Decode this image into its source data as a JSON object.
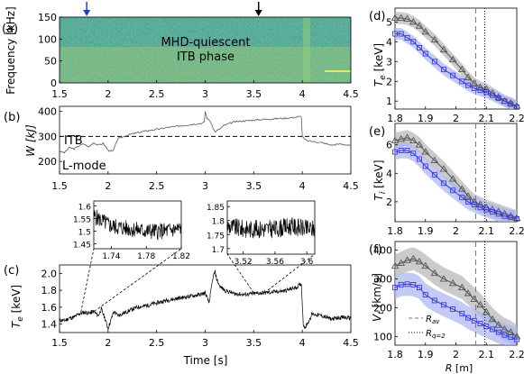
{
  "chart_data": [
    {
      "panel": "(a)",
      "type": "heatmap",
      "ylabel": "Frequency [kHz]",
      "xlim": [
        1.5,
        4.5
      ],
      "ylim": [
        0,
        150
      ],
      "xticks": [
        "1.5",
        "2",
        "2.5",
        "3",
        "3.5",
        "4",
        "4.5"
      ],
      "yticks": [
        "0",
        "50",
        "100",
        "150"
      ],
      "annotation": "MHD-quiescent\nITB phase",
      "arrows": [
        {
          "x": 1.78,
          "color": "#1f3fd6"
        },
        {
          "x": 3.55,
          "color": "#000000"
        }
      ],
      "colors": {
        "base": "#3fa58c",
        "low": "#2f6f8f",
        "high": "#d8e45a"
      }
    },
    {
      "panel": "(b)",
      "type": "line",
      "ylabel": "W [kJ]",
      "xlim": [
        1.5,
        4.5
      ],
      "ylim": [
        150,
        420
      ],
      "xticks": [
        "1.5",
        "2",
        "2.5",
        "3",
        "3.5",
        "4",
        "4.5"
      ],
      "yticks": [
        "200",
        "300",
        "400"
      ],
      "threshold": 300,
      "labels": [
        "ITB",
        "L-mode"
      ],
      "series": [
        {
          "x": [
            1.5,
            1.55,
            1.6,
            1.65,
            1.7,
            1.75,
            1.8,
            1.85,
            1.9,
            1.95,
            2.0,
            2.05,
            2.1,
            2.2,
            2.3,
            2.4,
            2.5,
            2.6,
            2.7,
            2.8,
            2.9,
            2.95,
            2.99,
            3.0,
            3.02,
            3.05,
            3.1,
            3.15,
            3.2,
            3.3,
            3.4,
            3.5,
            3.6,
            3.7,
            3.8,
            3.9,
            3.95,
            3.99,
            4.0,
            4.02,
            4.05,
            4.1,
            4.2,
            4.3,
            4.4,
            4.5
          ],
          "y": [
            240,
            235,
            255,
            250,
            262,
            270,
            258,
            275,
            265,
            272,
            245,
            240,
            290,
            305,
            315,
            322,
            328,
            335,
            340,
            345,
            350,
            352,
            355,
            400,
            372,
            362,
            318,
            330,
            345,
            358,
            362,
            365,
            368,
            370,
            372,
            375,
            378,
            380,
            300,
            290,
            282,
            280,
            275,
            265,
            270,
            262
          ]
        }
      ]
    },
    {
      "panel": "(c)",
      "type": "line",
      "ylabel": "Te [keV]",
      "xlabel": "Time [s]",
      "xlim": [
        1.5,
        4.5
      ],
      "ylim": [
        1.3,
        2.1
      ],
      "xticks": [
        "1.5",
        "2",
        "2.5",
        "3",
        "3.5",
        "4",
        "4.5"
      ],
      "yticks": [
        "1.4",
        "1.6",
        "1.8",
        "2.0"
      ],
      "series": [
        {
          "x": [
            1.5,
            1.55,
            1.6,
            1.65,
            1.7,
            1.75,
            1.8,
            1.85,
            1.9,
            1.93,
            1.96,
            2.0,
            2.03,
            2.06,
            2.1,
            2.2,
            2.3,
            2.4,
            2.5,
            2.6,
            2.7,
            2.8,
            2.9,
            2.95,
            3.0,
            3.04,
            3.08,
            3.1,
            3.12,
            3.15,
            3.2,
            3.25,
            3.3,
            3.4,
            3.5,
            3.6,
            3.7,
            3.8,
            3.9,
            3.95,
            3.99,
            4.01,
            4.03,
            4.06,
            4.1,
            4.2,
            4.3,
            4.4,
            4.5
          ],
          "y": [
            1.45,
            1.44,
            1.47,
            1.48,
            1.52,
            1.54,
            1.53,
            1.55,
            1.5,
            1.58,
            1.49,
            1.35,
            1.45,
            1.55,
            1.5,
            1.55,
            1.6,
            1.62,
            1.65,
            1.68,
            1.7,
            1.72,
            1.74,
            1.75,
            1.77,
            1.65,
            1.95,
            2.02,
            1.93,
            1.85,
            1.8,
            1.78,
            1.76,
            1.75,
            1.76,
            1.77,
            1.78,
            1.79,
            1.82,
            1.84,
            1.88,
            1.4,
            1.36,
            1.42,
            1.52,
            1.5,
            1.46,
            1.48,
            1.47
          ]
        }
      ]
    },
    {
      "panel": "inset-1",
      "type": "line",
      "xlim": [
        1.72,
        1.82
      ],
      "ylim": [
        1.43,
        1.62
      ],
      "xticks": [
        "1.74",
        "1.78",
        "1.82"
      ],
      "yticks": [
        "1.45",
        "1.5",
        "1.55",
        "1.6"
      ],
      "series": [
        {
          "x": [
            1.72,
            1.73,
            1.74,
            1.76,
            1.78,
            1.8,
            1.82
          ],
          "y": [
            1.56,
            1.54,
            1.52,
            1.51,
            1.5,
            1.5,
            1.51
          ]
        }
      ]
    },
    {
      "panel": "inset-2",
      "type": "line",
      "xlim": [
        3.5,
        3.61
      ],
      "ylim": [
        1.68,
        1.87
      ],
      "xticks": [
        "3.52",
        "3.56",
        "3.6"
      ],
      "yticks": [
        "1.7",
        "1.75",
        "1.8",
        "1.85"
      ],
      "series": [
        {
          "x": [
            3.5,
            3.52,
            3.54,
            3.56,
            3.58,
            3.6,
            3.61
          ],
          "y": [
            1.78,
            1.77,
            1.77,
            1.77,
            1.78,
            1.77,
            1.77
          ]
        }
      ]
    },
    {
      "panel": "(d)",
      "type": "line",
      "ylabel": "Te [keV]",
      "xlim": [
        1.8,
        2.2
      ],
      "ylim": [
        0.6,
        5.7
      ],
      "xticks": [
        "1.8",
        "1.9",
        "2",
        "2.1",
        "2.2"
      ],
      "yticks": [
        "1",
        "2",
        "3",
        "4",
        "5"
      ],
      "Rav": 2.065,
      "Rq2": 2.095,
      "series": [
        {
          "marker": "triangle",
          "color": "#555555",
          "x": [
            1.8,
            1.82,
            1.84,
            1.86,
            1.88,
            1.9,
            1.93,
            1.96,
            1.99,
            2.02,
            2.04,
            2.06,
            2.08,
            2.1,
            2.12,
            2.14,
            2.16,
            2.18,
            2.2
          ],
          "y": [
            5.2,
            5.2,
            5.15,
            5.0,
            4.8,
            4.5,
            4.1,
            3.6,
            3.1,
            2.6,
            2.2,
            1.9,
            1.7,
            1.6,
            1.4,
            1.2,
            1.0,
            0.9,
            0.75
          ],
          "band": 0.3
        },
        {
          "marker": "square",
          "color": "#3a3ae0",
          "x": [
            1.8,
            1.82,
            1.84,
            1.86,
            1.88,
            1.9,
            1.93,
            1.96,
            1.99,
            2.02,
            2.04,
            2.06,
            2.08,
            2.1,
            2.12,
            2.14,
            2.16,
            2.18,
            2.2
          ],
          "y": [
            4.4,
            4.4,
            4.2,
            4.0,
            3.7,
            3.4,
            3.0,
            2.6,
            2.3,
            2.0,
            1.8,
            1.65,
            1.55,
            1.45,
            1.3,
            1.15,
            1.0,
            0.85,
            0.7
          ],
          "band": 0.3
        }
      ]
    },
    {
      "panel": "(e)",
      "type": "line",
      "ylabel": "Ti [keV]",
      "xlim": [
        1.8,
        2.2
      ],
      "ylim": [
        0.6,
        7.5
      ],
      "xticks": [
        "1.8",
        "1.9",
        "2",
        "2.1",
        "2.2"
      ],
      "yticks": [
        "2",
        "4",
        "6"
      ],
      "Rav": 2.065,
      "Rq2": 2.095,
      "series": [
        {
          "marker": "triangle",
          "color": "#555555",
          "x": [
            1.8,
            1.82,
            1.84,
            1.86,
            1.88,
            1.9,
            1.93,
            1.96,
            1.99,
            2.02,
            2.04,
            2.06,
            2.08,
            2.1,
            2.12,
            2.14,
            2.16,
            2.18,
            2.2
          ],
          "y": [
            6.3,
            6.4,
            6.5,
            6.3,
            6.0,
            5.5,
            4.9,
            4.3,
            3.6,
            2.9,
            2.4,
            2.0,
            1.8,
            1.6,
            1.45,
            1.3,
            1.15,
            1.0,
            0.85
          ],
          "band": 0.55
        },
        {
          "marker": "square",
          "color": "#3a3ae0",
          "x": [
            1.8,
            1.82,
            1.84,
            1.86,
            1.88,
            1.9,
            1.93,
            1.96,
            1.99,
            2.02,
            2.04,
            2.06,
            2.08,
            2.1,
            2.12,
            2.14,
            2.16,
            2.18,
            2.2
          ],
          "y": [
            5.5,
            5.6,
            5.6,
            5.4,
            5.0,
            4.5,
            3.9,
            3.3,
            2.8,
            2.3,
            2.0,
            1.8,
            1.6,
            1.45,
            1.3,
            1.15,
            1.0,
            0.9,
            0.8
          ],
          "band": 0.55
        }
      ]
    },
    {
      "panel": "(f)",
      "type": "line",
      "ylabel": "Vt [km/s]",
      "xlabel": "R [m]",
      "xlim": [
        1.8,
        2.2
      ],
      "ylim": [
        70,
        430
      ],
      "xticks": [
        "1.8",
        "1.9",
        "2",
        "2.1",
        "2.2"
      ],
      "yticks": [
        "100",
        "200",
        "300",
        "400"
      ],
      "Rav": 2.065,
      "Rq2": 2.095,
      "legend": [
        "R_av",
        "R_q=2"
      ],
      "series": [
        {
          "marker": "triangle",
          "color": "#555555",
          "x": [
            1.8,
            1.82,
            1.84,
            1.86,
            1.88,
            1.9,
            1.93,
            1.96,
            1.99,
            2.02,
            2.04,
            2.06,
            2.08,
            2.1,
            2.12,
            2.14,
            2.16,
            2.18,
            2.2
          ],
          "y": [
            345,
            355,
            365,
            370,
            360,
            345,
            320,
            300,
            285,
            270,
            250,
            230,
            210,
            185,
            160,
            140,
            125,
            115,
            100
          ],
          "band": 40
        },
        {
          "marker": "square",
          "color": "#3a3ae0",
          "x": [
            1.8,
            1.82,
            1.84,
            1.86,
            1.88,
            1.9,
            1.93,
            1.96,
            1.99,
            2.02,
            2.04,
            2.06,
            2.08,
            2.1,
            2.12,
            2.14,
            2.16,
            2.18,
            2.2
          ],
          "y": [
            270,
            280,
            282,
            280,
            270,
            245,
            225,
            210,
            195,
            180,
            165,
            155,
            145,
            135,
            125,
            115,
            105,
            98,
            90
          ],
          "band": 40
        }
      ]
    }
  ],
  "text": {
    "panel_a": "(a)",
    "panel_b": "(b)",
    "panel_c": "(c)",
    "panel_d": "(d)",
    "panel_e": "(e)",
    "panel_f": "(f)",
    "freq_label": "Frequency [kHz]",
    "w_label": "W [kJ]",
    "te_label": "T",
    "te_sub": "e",
    "te_unit": " [keV]",
    "time_label": "Time [s]",
    "mhd_line1": "MHD-quiescent",
    "mhd_line2": "ITB phase",
    "itb": "ITB",
    "lmode": "L-mode",
    "d_ylabel": "T",
    "d_sub": "e",
    "d_unit": " [keV]",
    "e_ylabel": "T",
    "e_sub": "i",
    "e_unit": " [keV]",
    "f_ylabel": "V",
    "f_sub": "t",
    "f_unit": " [km/s]",
    "r_label": "R",
    "r_unit": " [m]",
    "leg_rav": "R",
    "leg_rav_sub": "av",
    "leg_rq": "R",
    "leg_rq_sub": "q=2"
  }
}
